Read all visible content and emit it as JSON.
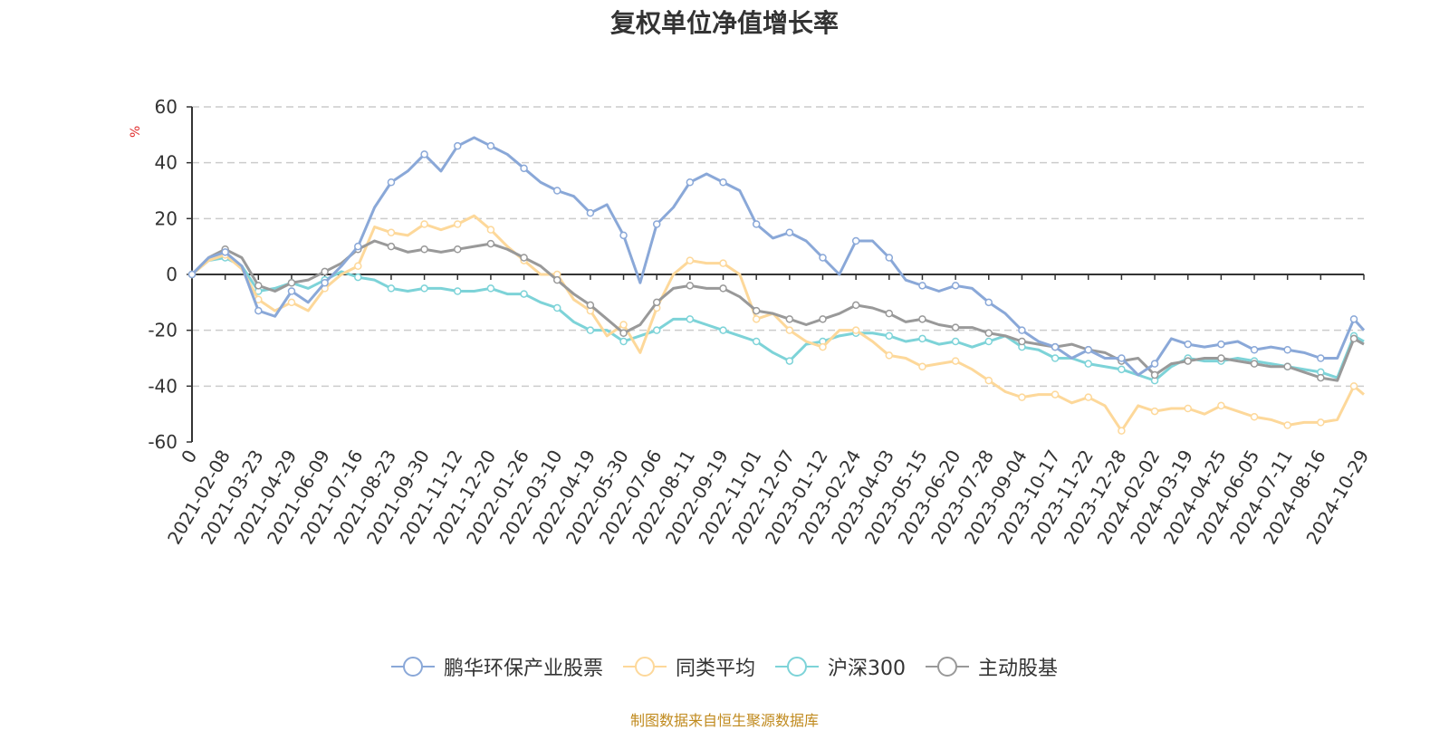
{
  "chart_data": {
    "type": "line",
    "title": "复权单位净值增长率",
    "ylabel": "%",
    "ylim": [
      -60,
      60
    ],
    "yticks": [
      60,
      40,
      20,
      0,
      -20,
      -40,
      -60
    ],
    "grid": true,
    "legend_position": "bottom",
    "x_tick_labels": [
      "0",
      "2021-02-08",
      "2021-03-23",
      "2021-04-29",
      "2021-06-09",
      "2021-07-16",
      "2021-08-23",
      "2021-09-30",
      "2021-11-12",
      "2021-12-20",
      "2022-01-26",
      "2022-03-10",
      "2022-04-19",
      "2022-05-30",
      "2022-07-06",
      "2022-08-11",
      "2022-09-19",
      "2022-11-01",
      "2022-12-07",
      "2023-01-12",
      "2023-02-24",
      "2023-04-03",
      "2023-05-15",
      "2023-06-20",
      "2023-07-28",
      "2023-09-04",
      "2023-10-17",
      "2023-11-22",
      "2023-12-28",
      "2024-02-02",
      "2024-03-19",
      "2024-04-25",
      "2024-06-05",
      "2024-07-11",
      "2024-08-16",
      "2024-10-29"
    ],
    "x_tick_positions": [
      0,
      1,
      2,
      3,
      4,
      5,
      6,
      7,
      8,
      9,
      10,
      11,
      12,
      13,
      14,
      15,
      16,
      17,
      18,
      19,
      20,
      21,
      22,
      23,
      24,
      25,
      26,
      27,
      28,
      29,
      30,
      31,
      32,
      33,
      34,
      35.3
    ],
    "x": [
      0,
      0.5,
      1,
      1.5,
      2,
      2.5,
      3,
      3.5,
      4,
      4.5,
      5,
      5.5,
      6,
      6.5,
      7,
      7.5,
      8,
      8.5,
      9,
      9.5,
      10,
      10.5,
      11,
      11.5,
      12,
      12.5,
      13,
      13.5,
      14,
      14.5,
      15,
      15.5,
      16,
      16.5,
      17,
      17.5,
      18,
      18.5,
      19,
      19.5,
      20,
      20.5,
      21,
      21.5,
      22,
      22.5,
      23,
      23.5,
      24,
      24.5,
      25,
      25.5,
      26,
      26.5,
      27,
      27.5,
      28,
      28.5,
      29,
      29.5,
      30,
      30.5,
      31,
      31.5,
      32,
      32.5,
      33,
      33.5,
      34,
      34.5,
      35,
      35.3
    ],
    "series": [
      {
        "name": "鹏华环保产业股票",
        "color": "#8aa8d8",
        "values": [
          0,
          6,
          8,
          3,
          -13,
          -15,
          -6,
          -10,
          -3,
          3,
          10,
          24,
          33,
          37,
          43,
          37,
          46,
          49,
          46,
          43,
          38,
          33,
          30,
          28,
          22,
          25,
          14,
          -3,
          18,
          24,
          33,
          36,
          33,
          30,
          18,
          13,
          15,
          12,
          6,
          0,
          12,
          12,
          6,
          -2,
          -4,
          -6,
          -4,
          -5,
          -10,
          -14,
          -20,
          -24,
          -26,
          -30,
          -27,
          -30,
          -30,
          -36,
          -32,
          -23,
          -25,
          -26,
          -25,
          -24,
          -27,
          -26,
          -27,
          -28,
          -30,
          -30,
          -16,
          -20
        ]
      },
      {
        "name": "同类平均",
        "color": "#fdd89a",
        "values": [
          0,
          5,
          7,
          2,
          -9,
          -13,
          -10,
          -13,
          -5,
          0,
          3,
          17,
          15,
          14,
          18,
          16,
          18,
          21,
          16,
          10,
          5,
          0,
          0,
          -9,
          -13,
          -22,
          -18,
          -28,
          -12,
          0,
          5,
          4,
          4,
          0,
          -16,
          -14,
          -20,
          -24,
          -26,
          -20,
          -20,
          -24,
          -29,
          -30,
          -33,
          -32,
          -31,
          -34,
          -38,
          -42,
          -44,
          -43,
          -43,
          -46,
          -44,
          -47,
          -56,
          -47,
          -49,
          -48,
          -48,
          -50,
          -47,
          -49,
          -51,
          -52,
          -54,
          -53,
          -53,
          -52,
          -40,
          -43
        ]
      },
      {
        "name": "沪深300",
        "color": "#7dd3d8",
        "values": [
          0,
          5,
          6,
          3,
          -6,
          -5,
          -3,
          -5,
          -2,
          1,
          -1,
          -2,
          -5,
          -6,
          -5,
          -5,
          -6,
          -6,
          -5,
          -7,
          -7,
          -10,
          -12,
          -17,
          -20,
          -20,
          -24,
          -22,
          -20,
          -16,
          -16,
          -18,
          -20,
          -22,
          -24,
          -28,
          -31,
          -25,
          -24,
          -22,
          -21,
          -21,
          -22,
          -24,
          -23,
          -25,
          -24,
          -26,
          -24,
          -22,
          -26,
          -27,
          -30,
          -30,
          -32,
          -33,
          -34,
          -36,
          -38,
          -33,
          -30,
          -31,
          -31,
          -30,
          -31,
          -32,
          -33,
          -34,
          -35,
          -37,
          -22,
          -24
        ]
      },
      {
        "name": "主动股基",
        "color": "#999999",
        "values": [
          0,
          6,
          9,
          6,
          -4,
          -6,
          -3,
          -2,
          1,
          4,
          9,
          12,
          10,
          8,
          9,
          8,
          9,
          10,
          11,
          9,
          6,
          3,
          -2,
          -7,
          -11,
          -16,
          -21,
          -18,
          -10,
          -5,
          -4,
          -5,
          -5,
          -8,
          -13,
          -14,
          -16,
          -18,
          -16,
          -14,
          -11,
          -12,
          -14,
          -17,
          -16,
          -18,
          -19,
          -19,
          -21,
          -22,
          -24,
          -25,
          -26,
          -25,
          -27,
          -28,
          -31,
          -30,
          -36,
          -32,
          -31,
          -30,
          -30,
          -31,
          -32,
          -33,
          -33,
          -35,
          -37,
          -38,
          -23,
          -25
        ]
      }
    ]
  },
  "legend": [
    {
      "label": "鹏华环保产业股票",
      "color": "#8aa8d8"
    },
    {
      "label": "同类平均",
      "color": "#fdd89a"
    },
    {
      "label": "沪深300",
      "color": "#7dd3d8"
    },
    {
      "label": "主动股基",
      "color": "#999999"
    }
  ],
  "source": "制图数据来自恒生聚源数据库"
}
